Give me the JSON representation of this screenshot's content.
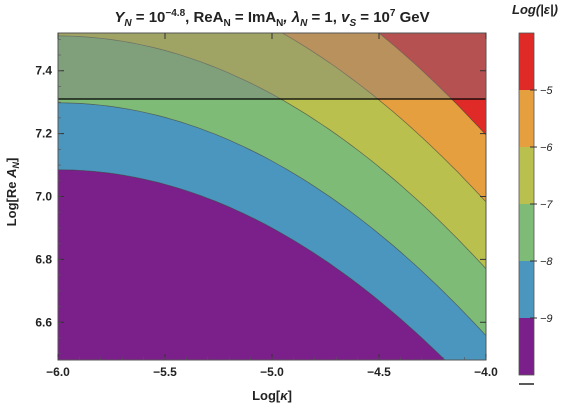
{
  "chart_data": {
    "type": "contour",
    "title": "Y_N = 10^-4.8, ReA_N = ImA_N, λ_N = 1, v_S = 10^7 GeV",
    "xlabel": "Log[κ]",
    "ylabel": "Log[Re A_N]",
    "xlim": [
      -6.0,
      -4.0
    ],
    "ylim": [
      6.48,
      7.52
    ],
    "x_ticks": [
      "−6.0",
      "−5.5",
      "−5.0",
      "−4.5",
      "−4.0"
    ],
    "x_tick_values": [
      -6.0,
      -5.5,
      -5.0,
      -4.5,
      -4.0
    ],
    "y_ticks": [
      "6.6",
      "6.8",
      "7.0",
      "7.2",
      "7.4"
    ],
    "y_tick_values": [
      6.6,
      6.8,
      7.0,
      7.2,
      7.4
    ],
    "contour_model": {
      "a": 9.4,
      "b": 4.7,
      "d": 0.87
    },
    "levels": [
      {
        "range": [
          "",
          "-9"
        ],
        "color": "#7b1f8a"
      },
      {
        "range": [
          "-9",
          "-8"
        ],
        "color": "#4a96bf"
      },
      {
        "range": [
          "-8",
          "-7"
        ],
        "color": "#7ebb77"
      },
      {
        "range": [
          "-7",
          "-6"
        ],
        "color": "#b9c04d"
      },
      {
        "range": [
          "-6",
          "-5"
        ],
        "color": "#e69f3f"
      },
      {
        "range": [
          "-5",
          ""
        ],
        "color": "#e02a28"
      }
    ],
    "excluded_region": {
      "y_min": 7.31,
      "color": "#808080",
      "opacity": 0.45
    },
    "boundary_line_y": 7.31,
    "legend": {
      "title": "Log(|ε|)",
      "placement": "right",
      "ticks": [
        "−5",
        "−6",
        "−7",
        "−8",
        "−9"
      ],
      "tick_values": [
        -5,
        -6,
        -7,
        -8,
        -9
      ]
    },
    "grid": false
  },
  "title_parts": {
    "y_sym": "Y",
    "y_sub": "N",
    "y_eq": " = 10",
    "y_exp": "−4.8",
    "mid": ", ReA",
    "mid_sub": "N",
    "mid2": " = ImA",
    "mid2_sub": "N",
    "lam": ", λ",
    "lam_sub": "N",
    "lam_eq": " = 1, ",
    "v": "v",
    "v_sub": "S",
    "v_eq": " = 10",
    "v_exp": "7",
    "v_unit": " GeV"
  },
  "xlabel_parts": {
    "pre": "Log[",
    "sym": "κ",
    "post": "]"
  },
  "ylabel_parts": {
    "pre": "Log[Re ",
    "sym": "A",
    "sub": "N",
    "post": "]"
  },
  "legend_title_parts": {
    "pre": "Log(|",
    "sym": "ε",
    "post": "|)"
  }
}
